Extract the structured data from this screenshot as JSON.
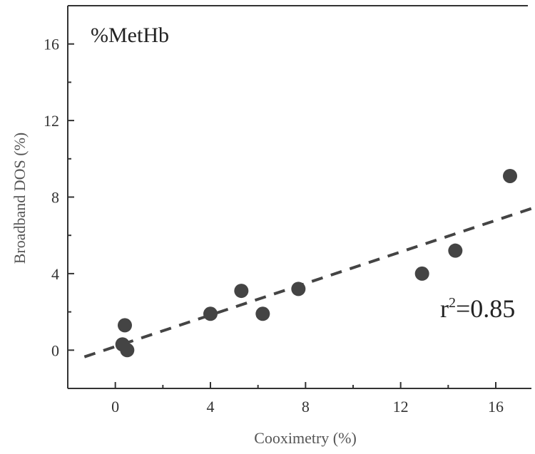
{
  "chart_data": {
    "type": "scatter",
    "panel_label": "%MetHb",
    "xlabel": "Cooximetry (%)",
    "ylabel": "Broadband DOS (%)",
    "xlim": [
      -2,
      17.5
    ],
    "ylim": [
      -2,
      18
    ],
    "xticks": [
      0,
      4,
      8,
      12,
      16
    ],
    "yticks": [
      0,
      4,
      8,
      12,
      16
    ],
    "xtick_labels": [
      "0",
      "4",
      "8",
      "12",
      "16"
    ],
    "ytick_labels": [
      "0",
      "4",
      "8",
      "12",
      "16"
    ],
    "points": [
      {
        "x": 0.4,
        "y": 1.3
      },
      {
        "x": 0.3,
        "y": 0.3
      },
      {
        "x": 0.5,
        "y": 0.0
      },
      {
        "x": 4.0,
        "y": 1.9
      },
      {
        "x": 5.3,
        "y": 3.1
      },
      {
        "x": 6.2,
        "y": 1.9
      },
      {
        "x": 7.7,
        "y": 3.2
      },
      {
        "x": 12.9,
        "y": 4.0
      },
      {
        "x": 14.3,
        "y": 5.2
      },
      {
        "x": 16.6,
        "y": 9.1
      }
    ],
    "fit_line": {
      "style": "dashed",
      "x": [
        -1.3,
        17.5
      ],
      "y": [
        -0.35,
        7.4
      ]
    },
    "annotation": {
      "text": "r²=0.85",
      "x": 15.6,
      "y": 2.3
    },
    "grid": false
  }
}
